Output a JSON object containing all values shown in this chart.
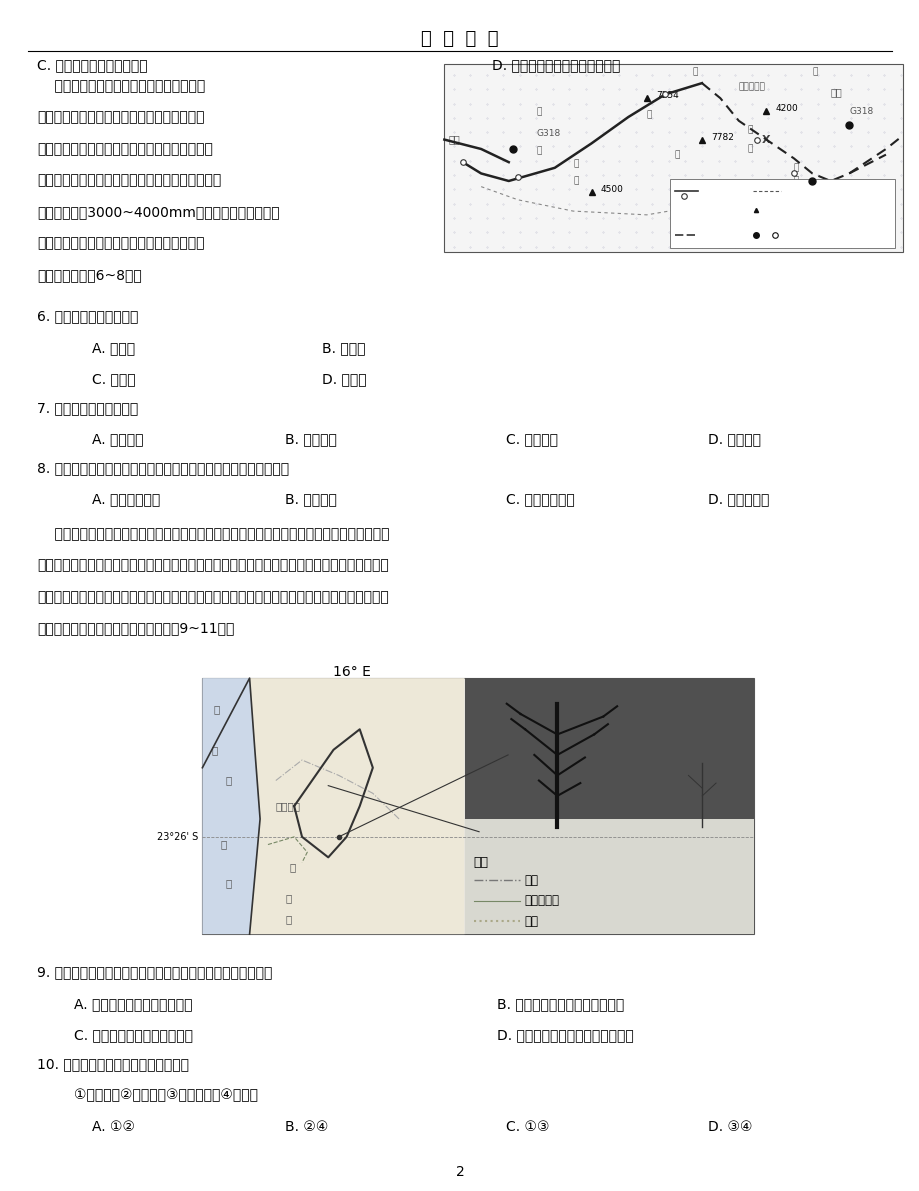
{
  "title": "学  海  无  涯",
  "bg": "#ffffff",
  "text_color": "#000000",
  "page_num": "2",
  "line1_c": "C. 乡镇中心地的吸引力增强",
  "line1_d": "D. 家庭因素决定农民工流动变化",
  "para1": [
    "    西藏自治区东南部林芝市的墨脱县地处雅",
    "鲁藏布江下游藏南地区，与青藏高原之间有喜",
    "马拉雅山脉阻隔，这里地壳垂直抬升与水平位移",
    "共同作用，地形崎岖，交通极为不便。墨脱气候温",
    "和，年降水量3000~4000mm。墨脱公路嘎隆拉雪山",
    "隧道时常发生透水事故，严重影响了墨脱的物",
    "资倘。据此完成6~8题。"
  ],
  "q6": "6. 墨脱的降水类型主要是",
  "q6_opts": [
    [
      "A. 对流雨",
      "B. 地形雨"
    ],
    [
      "C. 气旋雨",
      "D. 锋面雨"
    ]
  ],
  "q7": "7. 墨脱降水的水汽来源于",
  "q7_opts": [
    "A. 东南季风",
    "B. 东北季风",
    "C. 西南季风",
    "D. 西北季风"
  ],
  "q8": "8. 墨脱公路嘎隆拉雪山隧道建成后透水事故发生频率较高的原因是",
  "q8_opts": [
    "A. 年降水量丰富",
    "B. 岩层错动",
    "C. 冰川侵蚀强烈",
    "D. 地下水位高"
  ],
  "para2": [
    "    纳米比亚死亡谷位于纳米布沙漠中，是一块白色的盐沼盆地。死亡谷曾是一片绿洲，生长着",
    "许多刺槐树，但随着沙漠中水源的变迁，刺槐纷纷死亡，干枯的树干在烈日的焦烤下变黑，一棵",
    "棵突兀地立在白色的盐沼上，千年不腐。当地仅有稀少的灌木丛依靠薄薄的晨雾维持生命。下图",
    "示意死亡谷地理位置和景观。据此完成9~11题。"
  ],
  "map2_label": "16° E",
  "q9": "9. 纳米比亚死亡谷干枯的刺槐历经千年而不腐烂的主要原因是",
  "q9_opts_r1": [
    "A. 刺槐地下根系发达，耐盐碱",
    "B. 刺槐枝叶稀疏，蒸腾作用较弱"
  ],
  "q9_opts_r2": [
    "C. 气候炎热干燥，降水量稀少",
    "D. 蒸发旺盛，树干内盐分积累众多"
  ],
  "q10": "10. 影响死亡谷晨雾形成的主要因素有",
  "q10_sub": "①沙丘起伏②大气运动③河流径流量④下垫面",
  "q10_opts": [
    "A. ①②",
    "B. ②④",
    "C. ①③",
    "D. ③④"
  ]
}
